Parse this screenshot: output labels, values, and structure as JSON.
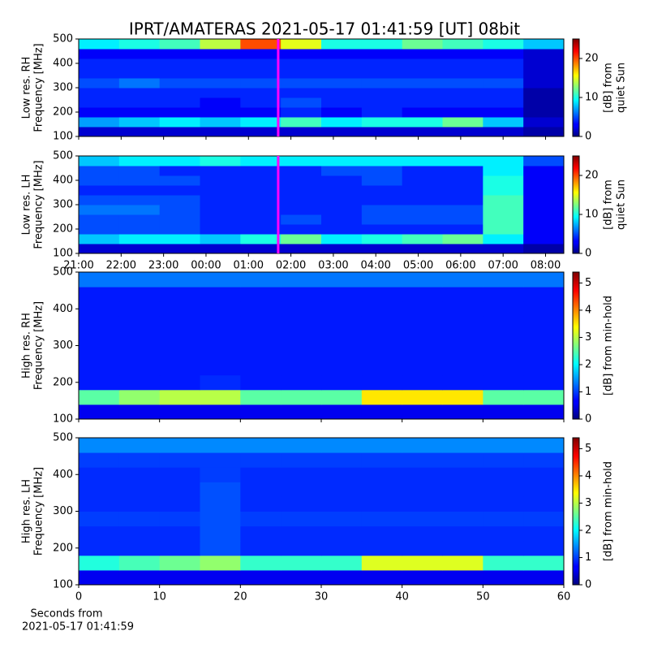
{
  "title": "IPRT/AMATERAS 2021-05-17 01:41:59 [UT]   08bit",
  "chart_data": [
    {
      "type": "heatmap",
      "cmap": "jet",
      "ylabel": [
        "Low res. RH",
        "Frequency [MHz]"
      ],
      "ylim": [
        100,
        500
      ],
      "yticks": [
        100,
        200,
        300,
        400,
        500
      ],
      "xlim": [
        21,
        32.43
      ],
      "xticks": [
        {
          "value": 21,
          "label": "21:00"
        },
        {
          "value": 22,
          "label": "22:00"
        },
        {
          "value": 23,
          "label": "23:00"
        },
        {
          "value": 24,
          "label": "00:00"
        },
        {
          "value": 25,
          "label": "01:00"
        },
        {
          "value": 26,
          "label": "02:00"
        },
        {
          "value": 27,
          "label": "03:00"
        },
        {
          "value": 28,
          "label": "04:00"
        },
        {
          "value": 29,
          "label": "05:00"
        },
        {
          "value": 30,
          "label": "06:00"
        },
        {
          "value": 31,
          "label": "07:00"
        },
        {
          "value": 32,
          "label": "08:00"
        }
      ],
      "show_xtick_labels": false,
      "marker_x": 25.7,
      "marker_color": "#ff00ff",
      "clim": [
        0,
        25
      ],
      "cticks": [
        0,
        10,
        20
      ],
      "clabel": [
        "[dB] from",
        "quiet Sun"
      ],
      "z": [
        [
          2,
          2,
          2,
          2,
          2,
          2,
          2,
          2,
          2,
          2,
          2,
          1
        ],
        [
          7,
          8,
          9,
          8,
          9,
          11,
          9,
          10,
          10,
          12,
          8,
          2
        ],
        [
          3,
          3,
          3,
          3,
          3,
          4,
          3,
          4,
          3,
          3,
          3,
          1
        ],
        [
          4,
          4,
          4,
          3,
          4,
          5,
          4,
          4,
          4,
          4,
          4,
          1
        ],
        [
          4,
          4,
          4,
          4,
          4,
          4,
          4,
          4,
          4,
          4,
          4,
          1
        ],
        [
          5,
          6,
          5,
          5,
          5,
          5,
          5,
          5,
          5,
          5,
          5,
          2
        ],
        [
          4,
          4,
          4,
          4,
          4,
          4,
          4,
          4,
          4,
          4,
          4,
          2
        ],
        [
          4,
          4,
          4,
          4,
          4,
          4,
          4,
          4,
          4,
          4,
          4,
          2
        ],
        [
          3,
          3,
          3,
          3,
          3,
          3,
          3,
          3,
          3,
          3,
          3,
          2
        ],
        [
          9,
          10,
          11,
          14,
          20,
          15,
          10,
          10,
          12,
          11,
          10,
          8
        ]
      ]
    },
    {
      "type": "heatmap",
      "cmap": "jet",
      "ylabel": [
        "Low res. LH",
        "Frequency [MHz]"
      ],
      "ylim": [
        100,
        500
      ],
      "yticks": [
        100,
        200,
        300,
        400,
        500
      ],
      "xlim": [
        21,
        32.43
      ],
      "xticks": [
        {
          "value": 21,
          "label": "21:00"
        },
        {
          "value": 22,
          "label": "22:00"
        },
        {
          "value": 23,
          "label": "23:00"
        },
        {
          "value": 24,
          "label": "00:00"
        },
        {
          "value": 25,
          "label": "01:00"
        },
        {
          "value": 26,
          "label": "02:00"
        },
        {
          "value": 27,
          "label": "03:00"
        },
        {
          "value": 28,
          "label": "04:00"
        },
        {
          "value": 29,
          "label": "05:00"
        },
        {
          "value": 30,
          "label": "06:00"
        },
        {
          "value": 31,
          "label": "07:00"
        },
        {
          "value": 32,
          "label": "08:00"
        }
      ],
      "show_xtick_labels": true,
      "marker_x": 25.7,
      "marker_color": "#ff00ff",
      "clim": [
        0,
        25
      ],
      "cticks": [
        0,
        10,
        20
      ],
      "clabel": [
        "[dB] from",
        "quiet Sun"
      ],
      "z": [
        [
          2,
          2,
          2,
          2,
          2,
          2,
          2,
          2,
          2,
          2,
          2,
          1
        ],
        [
          8,
          9,
          9,
          8,
          10,
          12,
          9,
          10,
          11,
          12,
          9,
          3
        ],
        [
          5,
          5,
          5,
          4,
          4,
          4,
          4,
          4,
          4,
          4,
          11,
          3
        ],
        [
          5,
          5,
          5,
          4,
          4,
          5,
          4,
          5,
          5,
          5,
          11,
          3
        ],
        [
          6,
          6,
          5,
          4,
          4,
          4,
          4,
          5,
          5,
          5,
          11,
          3
        ],
        [
          5,
          5,
          5,
          4,
          4,
          4,
          4,
          4,
          4,
          4,
          11,
          3
        ],
        [
          4,
          4,
          4,
          4,
          4,
          4,
          4,
          4,
          4,
          4,
          10,
          3
        ],
        [
          5,
          5,
          5,
          4,
          4,
          4,
          4,
          5,
          4,
          4,
          10,
          3
        ],
        [
          5,
          5,
          4,
          4,
          4,
          4,
          5,
          5,
          4,
          4,
          9,
          3
        ],
        [
          8,
          9,
          9,
          10,
          9,
          9,
          9,
          9,
          9,
          9,
          9,
          5
        ]
      ]
    },
    {
      "type": "heatmap",
      "cmap": "jet",
      "ylabel": [
        "High res. RH",
        "Frequency [MHz]"
      ],
      "ylim": [
        100,
        500
      ],
      "yticks": [
        100,
        200,
        300,
        400,
        500
      ],
      "xlim": [
        0,
        60
      ],
      "xticks": [
        0,
        10,
        20,
        30,
        40,
        50,
        60
      ],
      "show_xtick_labels": false,
      "clim": [
        0,
        5.4
      ],
      "cticks": [
        0,
        1,
        2,
        3,
        4,
        5
      ],
      "clabel": [
        "[dB] from min-hold"
      ],
      "z": [
        [
          0.6,
          0.6,
          0.6,
          0.6,
          0.6,
          0.6,
          0.6,
          0.6,
          0.6,
          0.6,
          0.6,
          0.6
        ],
        [
          2.5,
          2.8,
          3,
          3,
          2.5,
          2.5,
          2.5,
          3.5,
          3.5,
          3.5,
          2.5,
          2.5
        ],
        [
          0.8,
          0.8,
          0.8,
          0.9,
          0.8,
          0.8,
          0.8,
          0.8,
          0.8,
          0.8,
          0.8,
          0.8
        ],
        [
          0.8,
          0.8,
          0.8,
          0.8,
          0.8,
          0.8,
          0.8,
          0.8,
          0.8,
          0.8,
          0.8,
          0.8
        ],
        [
          0.8,
          0.8,
          0.8,
          0.8,
          0.8,
          0.8,
          0.8,
          0.8,
          0.8,
          0.8,
          0.8,
          0.8
        ],
        [
          0.8,
          0.8,
          0.8,
          0.8,
          0.8,
          0.8,
          0.8,
          0.8,
          0.8,
          0.8,
          0.8,
          0.8
        ],
        [
          0.8,
          0.8,
          0.8,
          0.8,
          0.8,
          0.8,
          0.8,
          0.8,
          0.8,
          0.8,
          0.8,
          0.8
        ],
        [
          0.8,
          0.8,
          0.8,
          0.8,
          0.8,
          0.8,
          0.8,
          0.8,
          0.8,
          0.8,
          0.8,
          0.8
        ],
        [
          0.8,
          0.8,
          0.8,
          0.8,
          0.8,
          0.8,
          0.8,
          0.8,
          0.8,
          0.8,
          0.8,
          0.8
        ],
        [
          1.3,
          1.3,
          1.3,
          1.3,
          1.3,
          1.3,
          1.3,
          1.3,
          1.3,
          1.3,
          1.3,
          1.3
        ]
      ]
    },
    {
      "type": "heatmap",
      "cmap": "jet",
      "ylabel": [
        "High res. LH",
        "Frequency [MHz]"
      ],
      "ylim": [
        100,
        500
      ],
      "yticks": [
        100,
        200,
        300,
        400,
        500
      ],
      "xlim": [
        0,
        60
      ],
      "xticks": [
        0,
        10,
        20,
        30,
        40,
        50,
        60
      ],
      "show_xtick_labels": true,
      "xlabel": [
        "Seconds from",
        "2021-05-17 01:41:59"
      ],
      "clim": [
        0,
        5.4
      ],
      "cticks": [
        0,
        1,
        2,
        3,
        4,
        5
      ],
      "clabel": [
        "[dB] from min-hold"
      ],
      "z": [
        [
          0.6,
          0.6,
          0.6,
          0.6,
          0.6,
          0.6,
          0.6,
          0.6,
          0.6,
          0.6,
          0.6,
          0.6
        ],
        [
          2.2,
          2.4,
          2.6,
          2.8,
          2.3,
          2.3,
          2.3,
          3.2,
          3.2,
          3.2,
          2.3,
          2.3
        ],
        [
          0.9,
          0.9,
          0.9,
          1.1,
          0.9,
          0.9,
          0.9,
          0.9,
          0.9,
          0.9,
          0.9,
          0.9
        ],
        [
          0.9,
          0.9,
          0.9,
          1.1,
          0.9,
          0.9,
          0.9,
          0.9,
          0.9,
          0.9,
          0.9,
          0.9
        ],
        [
          1.0,
          1.0,
          1.0,
          1.1,
          1.0,
          1.0,
          1.0,
          1.0,
          1.0,
          1.0,
          1.0,
          1.0
        ],
        [
          0.9,
          0.9,
          0.9,
          1.1,
          0.9,
          0.9,
          0.9,
          0.9,
          0.9,
          0.9,
          0.9,
          0.9
        ],
        [
          0.9,
          0.9,
          0.9,
          1.1,
          0.9,
          0.9,
          0.9,
          0.9,
          0.9,
          0.9,
          0.9,
          0.9
        ],
        [
          0.9,
          0.9,
          0.9,
          1.0,
          0.9,
          0.9,
          0.9,
          0.9,
          0.9,
          0.9,
          0.9,
          0.9
        ],
        [
          1.0,
          1.0,
          1.0,
          1.0,
          1.0,
          1.0,
          1.0,
          1.0,
          1.0,
          1.0,
          1.0,
          1.0
        ],
        [
          1.4,
          1.4,
          1.4,
          1.4,
          1.4,
          1.4,
          1.4,
          1.4,
          1.4,
          1.4,
          1.4,
          1.4
        ]
      ]
    }
  ]
}
